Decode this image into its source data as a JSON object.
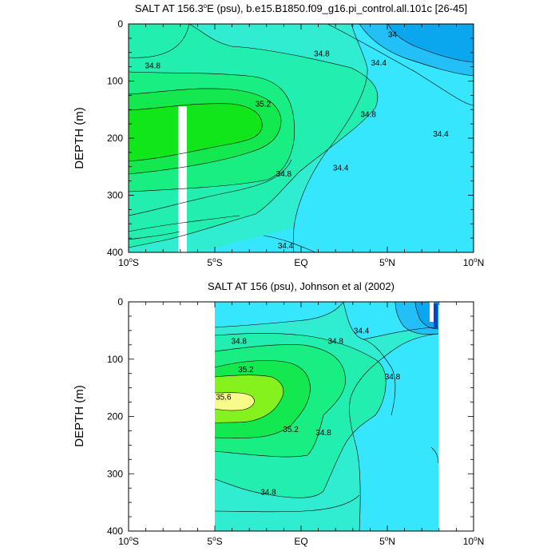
{
  "colors": {
    "lvl_335": "#0f3fd0",
    "lvl_34": "#0aa6ee",
    "lvl_342": "#22c0f6",
    "lvl_344": "#35e6fc",
    "lvl_346": "#30edd2",
    "lvl_348": "#22eeb0",
    "lvl_35": "#19ee82",
    "lvl_352": "#13e84e",
    "lvl_354": "#10e61a",
    "lvl_356": "#86f21d",
    "lvl_358": "#f8fa8a"
  },
  "chart_data": [
    {
      "type": "contour",
      "title": "SALT AT 156.3°E (psu), b.e15.B1850.f09_g16.pi_control.all.101c [26-45]",
      "title_pre": "SALT AT 156.3",
      "title_sup": "o",
      "title_post": "E (psu), b.e15.B1850.f09_g16.pi_control.all.101c [26-45]",
      "xlabel": "",
      "ylabel": "DEPTH (m)",
      "xlim": [
        -10,
        10
      ],
      "ylim": [
        400,
        0
      ],
      "x_ticks": [
        {
          "value": -10,
          "deg": "10",
          "hemi": "S"
        },
        {
          "value": -5,
          "deg": "5",
          "hemi": "S"
        },
        {
          "value": 0,
          "deg": "",
          "hemi": "EQ"
        },
        {
          "value": 5,
          "deg": "5",
          "hemi": "N"
        },
        {
          "value": 10,
          "deg": "10",
          "hemi": "N"
        }
      ],
      "y_ticks": [
        "0",
        "100",
        "200",
        "300",
        "400"
      ],
      "contour_labels": [
        {
          "text": "34",
          "x": 5.3,
          "y": 18
        },
        {
          "text": "34.8",
          "x": -8.6,
          "y": 73
        },
        {
          "text": "34.8",
          "x": 1.2,
          "y": 52
        },
        {
          "text": "34.4",
          "x": 4.5,
          "y": 68
        },
        {
          "text": "35.2",
          "x": -2.2,
          "y": 140
        },
        {
          "text": "34.8",
          "x": 3.9,
          "y": 158
        },
        {
          "text": "34.4",
          "x": 8.1,
          "y": 192
        },
        {
          "text": "34.8",
          "x": -1.0,
          "y": 262
        },
        {
          "text": "34.4",
          "x": 2.3,
          "y": 252
        },
        {
          "text": "34.4",
          "x": -0.9,
          "y": 388
        }
      ],
      "missing_region_label": ""
    },
    {
      "type": "contour",
      "title": "SALT AT 156 (psu), Johnson et al (2002)",
      "xlabel": "",
      "ylabel": "DEPTH (m)",
      "xlim": [
        -10,
        10
      ],
      "ylim": [
        400,
        0
      ],
      "x_ticks": [
        {
          "value": -10,
          "deg": "10",
          "hemi": "S"
        },
        {
          "value": -5,
          "deg": "5",
          "hemi": "S"
        },
        {
          "value": 0,
          "deg": "",
          "hemi": "EQ"
        },
        {
          "value": 5,
          "deg": "5",
          "hemi": "N"
        },
        {
          "value": 10,
          "deg": "10",
          "hemi": "N"
        }
      ],
      "y_ticks": [
        "0",
        "100",
        "200",
        "300",
        "400"
      ],
      "data_extent_x": [
        -5,
        8
      ],
      "contour_labels": [
        {
          "text": "34.4",
          "x": 3.5,
          "y": 50
        },
        {
          "text": "34.8",
          "x": -3.6,
          "y": 68
        },
        {
          "text": "34.8",
          "x": 2.0,
          "y": 68
        },
        {
          "text": "34.8",
          "x": 5.3,
          "y": 130
        },
        {
          "text": "35.2",
          "x": -3.2,
          "y": 118
        },
        {
          "text": "35.6",
          "x": -4.5,
          "y": 166
        },
        {
          "text": "35.2",
          "x": -0.6,
          "y": 222
        },
        {
          "text": "34.8",
          "x": 1.3,
          "y": 228
        },
        {
          "text": "34.8",
          "x": -1.9,
          "y": 332
        }
      ]
    }
  ]
}
